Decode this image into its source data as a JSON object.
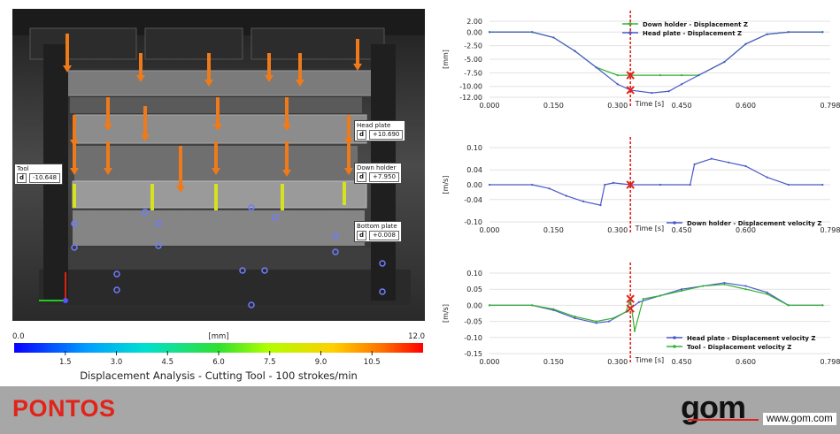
{
  "overlay": {
    "tool": {
      "name": "Tool",
      "key": "d",
      "value": "-10.648"
    },
    "head_plate": {
      "name": "Head plate",
      "key": "d",
      "value": "+10.690"
    },
    "down_holder": {
      "name": "Down holder",
      "key": "d",
      "value": "+7.950"
    },
    "bottom_plate": {
      "name": "Bottom plate",
      "key": "d",
      "value": "+0.008"
    }
  },
  "colorbar": {
    "min": "0.0",
    "max": "12.0",
    "unit": "[mm]",
    "ticks": [
      "1.5",
      "3.0",
      "4.5",
      "6.0",
      "7.5",
      "9.0",
      "10.5"
    ],
    "caption": "Displacement Analysis - Cutting Tool - 100 strokes/min"
  },
  "footer": {
    "brand": "PONTOS",
    "logo": "gom",
    "url": "www.gom.com"
  },
  "colors": {
    "red": "#e2231a",
    "green": "#35b035",
    "blue": "#4a59c8",
    "footer_bg": "#a7a7a7"
  },
  "chart_data": [
    {
      "type": "line",
      "ylabel": "[mm]",
      "xlabel": "Time [s]",
      "xlim": [
        0,
        0.798
      ],
      "ylim": [
        -12,
        2
      ],
      "xticks": [
        "0.000",
        "0.150",
        "0.300",
        "0.450",
        "0.600",
        "0.798"
      ],
      "yticks": [
        "2.00",
        "0.00",
        "-2.50",
        "-5.00",
        "-7.50",
        "-10.00",
        "-12.00"
      ],
      "marker_time": 0.33,
      "legend": "top-center",
      "series": [
        {
          "name": "Down holder - Displacement Z",
          "color": "#35b035",
          "x": [
            0,
            0.1,
            0.15,
            0.2,
            0.25,
            0.3,
            0.33,
            0.4,
            0.45,
            0.49,
            0.55,
            0.6,
            0.65,
            0.7,
            0.78
          ],
          "y": [
            0,
            0,
            -1.0,
            -3.5,
            -6.5,
            -7.95,
            -7.95,
            -7.95,
            -7.95,
            -7.95,
            -5.5,
            -2.2,
            -0.4,
            0,
            0
          ]
        },
        {
          "name": "Head plate - Displacement Z",
          "color": "#4a59c8",
          "x": [
            0,
            0.1,
            0.15,
            0.2,
            0.25,
            0.3,
            0.33,
            0.38,
            0.42,
            0.45,
            0.49,
            0.55,
            0.6,
            0.65,
            0.7,
            0.78
          ],
          "y": [
            0,
            0,
            -1.0,
            -3.5,
            -6.5,
            -9.6,
            -10.69,
            -11.2,
            -10.9,
            -9.6,
            -7.95,
            -5.5,
            -2.2,
            -0.4,
            0,
            0
          ]
        }
      ]
    },
    {
      "type": "line",
      "ylabel": "[m/s]",
      "xlabel": "Time [s]",
      "xlim": [
        0,
        0.798
      ],
      "ylim": [
        -0.1,
        0.1
      ],
      "xticks": [
        "0.000",
        "0.150",
        "0.300",
        "0.450",
        "0.600",
        "0.798"
      ],
      "yticks": [
        "0.10",
        "0.04",
        "0.00",
        "-0.04",
        "-0.10"
      ],
      "marker_time": 0.33,
      "legend": "bottom-right",
      "series": [
        {
          "name": "Down holder - Displacement velocity Z",
          "color": "#4a59c8",
          "x": [
            0,
            0.1,
            0.14,
            0.18,
            0.22,
            0.26,
            0.27,
            0.29,
            0.33,
            0.4,
            0.47,
            0.48,
            0.52,
            0.56,
            0.6,
            0.65,
            0.7,
            0.78
          ],
          "y": [
            0,
            0,
            -0.01,
            -0.03,
            -0.045,
            -0.055,
            0,
            0.005,
            0,
            0,
            0,
            0.055,
            0.07,
            0.06,
            0.05,
            0.02,
            0,
            0
          ]
        }
      ]
    },
    {
      "type": "line",
      "ylabel": "[m/s]",
      "xlabel": "Time [s]",
      "xlim": [
        0,
        0.798
      ],
      "ylim": [
        -0.15,
        0.1
      ],
      "xticks": [
        "0.000",
        "0.150",
        "0.300",
        "0.450",
        "0.600",
        "0.798"
      ],
      "yticks": [
        "0.10",
        "0.05",
        "0.00",
        "-0.05",
        "-0.10",
        "-0.15"
      ],
      "marker_time": 0.33,
      "legend": "bottom-right",
      "series": [
        {
          "name": "Head plate - Displacement velocity Z",
          "color": "#4a59c8",
          "x": [
            0,
            0.1,
            0.15,
            0.2,
            0.25,
            0.28,
            0.32,
            0.35,
            0.4,
            0.45,
            0.5,
            0.55,
            0.6,
            0.65,
            0.7,
            0.78
          ],
          "y": [
            0,
            0,
            -0.015,
            -0.04,
            -0.055,
            -0.05,
            -0.02,
            0.01,
            0.03,
            0.05,
            0.06,
            0.07,
            0.06,
            0.04,
            0,
            0
          ]
        },
        {
          "name": "Tool - Displacement velocity Z",
          "color": "#35b035",
          "x": [
            0,
            0.1,
            0.15,
            0.2,
            0.25,
            0.29,
            0.32,
            0.33,
            0.34,
            0.36,
            0.4,
            0.45,
            0.5,
            0.55,
            0.6,
            0.65,
            0.7,
            0.78
          ],
          "y": [
            0,
            0,
            -0.012,
            -0.035,
            -0.05,
            -0.04,
            -0.02,
            0.02,
            -0.08,
            0.02,
            0.03,
            0.045,
            0.06,
            0.065,
            0.05,
            0.035,
            0,
            0
          ]
        }
      ]
    }
  ]
}
